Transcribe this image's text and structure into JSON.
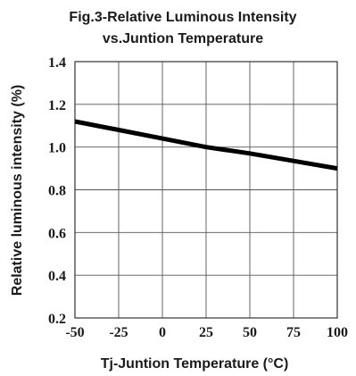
{
  "chart_data": {
    "type": "line",
    "title": "Fig.3-Relative Luminous Intensity",
    "subtitle": "vs.Juntion Temperature",
    "xlabel": "Tj-Juntion Temperature (°C)",
    "ylabel": "Relative luminous intensity (%)",
    "xlim": [
      -50,
      100
    ],
    "ylim": [
      0.2,
      1.4
    ],
    "xticks": [
      "-50",
      "-25",
      "0",
      "25",
      "50",
      "75",
      "100"
    ],
    "yticks": [
      "0.2",
      "0.4",
      "0.6",
      "0.8",
      "1.0",
      "1.2",
      "1.4"
    ],
    "grid": true,
    "legend": "none",
    "series": [
      {
        "color": "#000000",
        "x": [
          -50,
          -25,
          0,
          25,
          50,
          75,
          100
        ],
        "y": [
          1.12,
          1.08,
          1.04,
          1.0,
          0.97,
          0.935,
          0.9
        ]
      }
    ]
  }
}
